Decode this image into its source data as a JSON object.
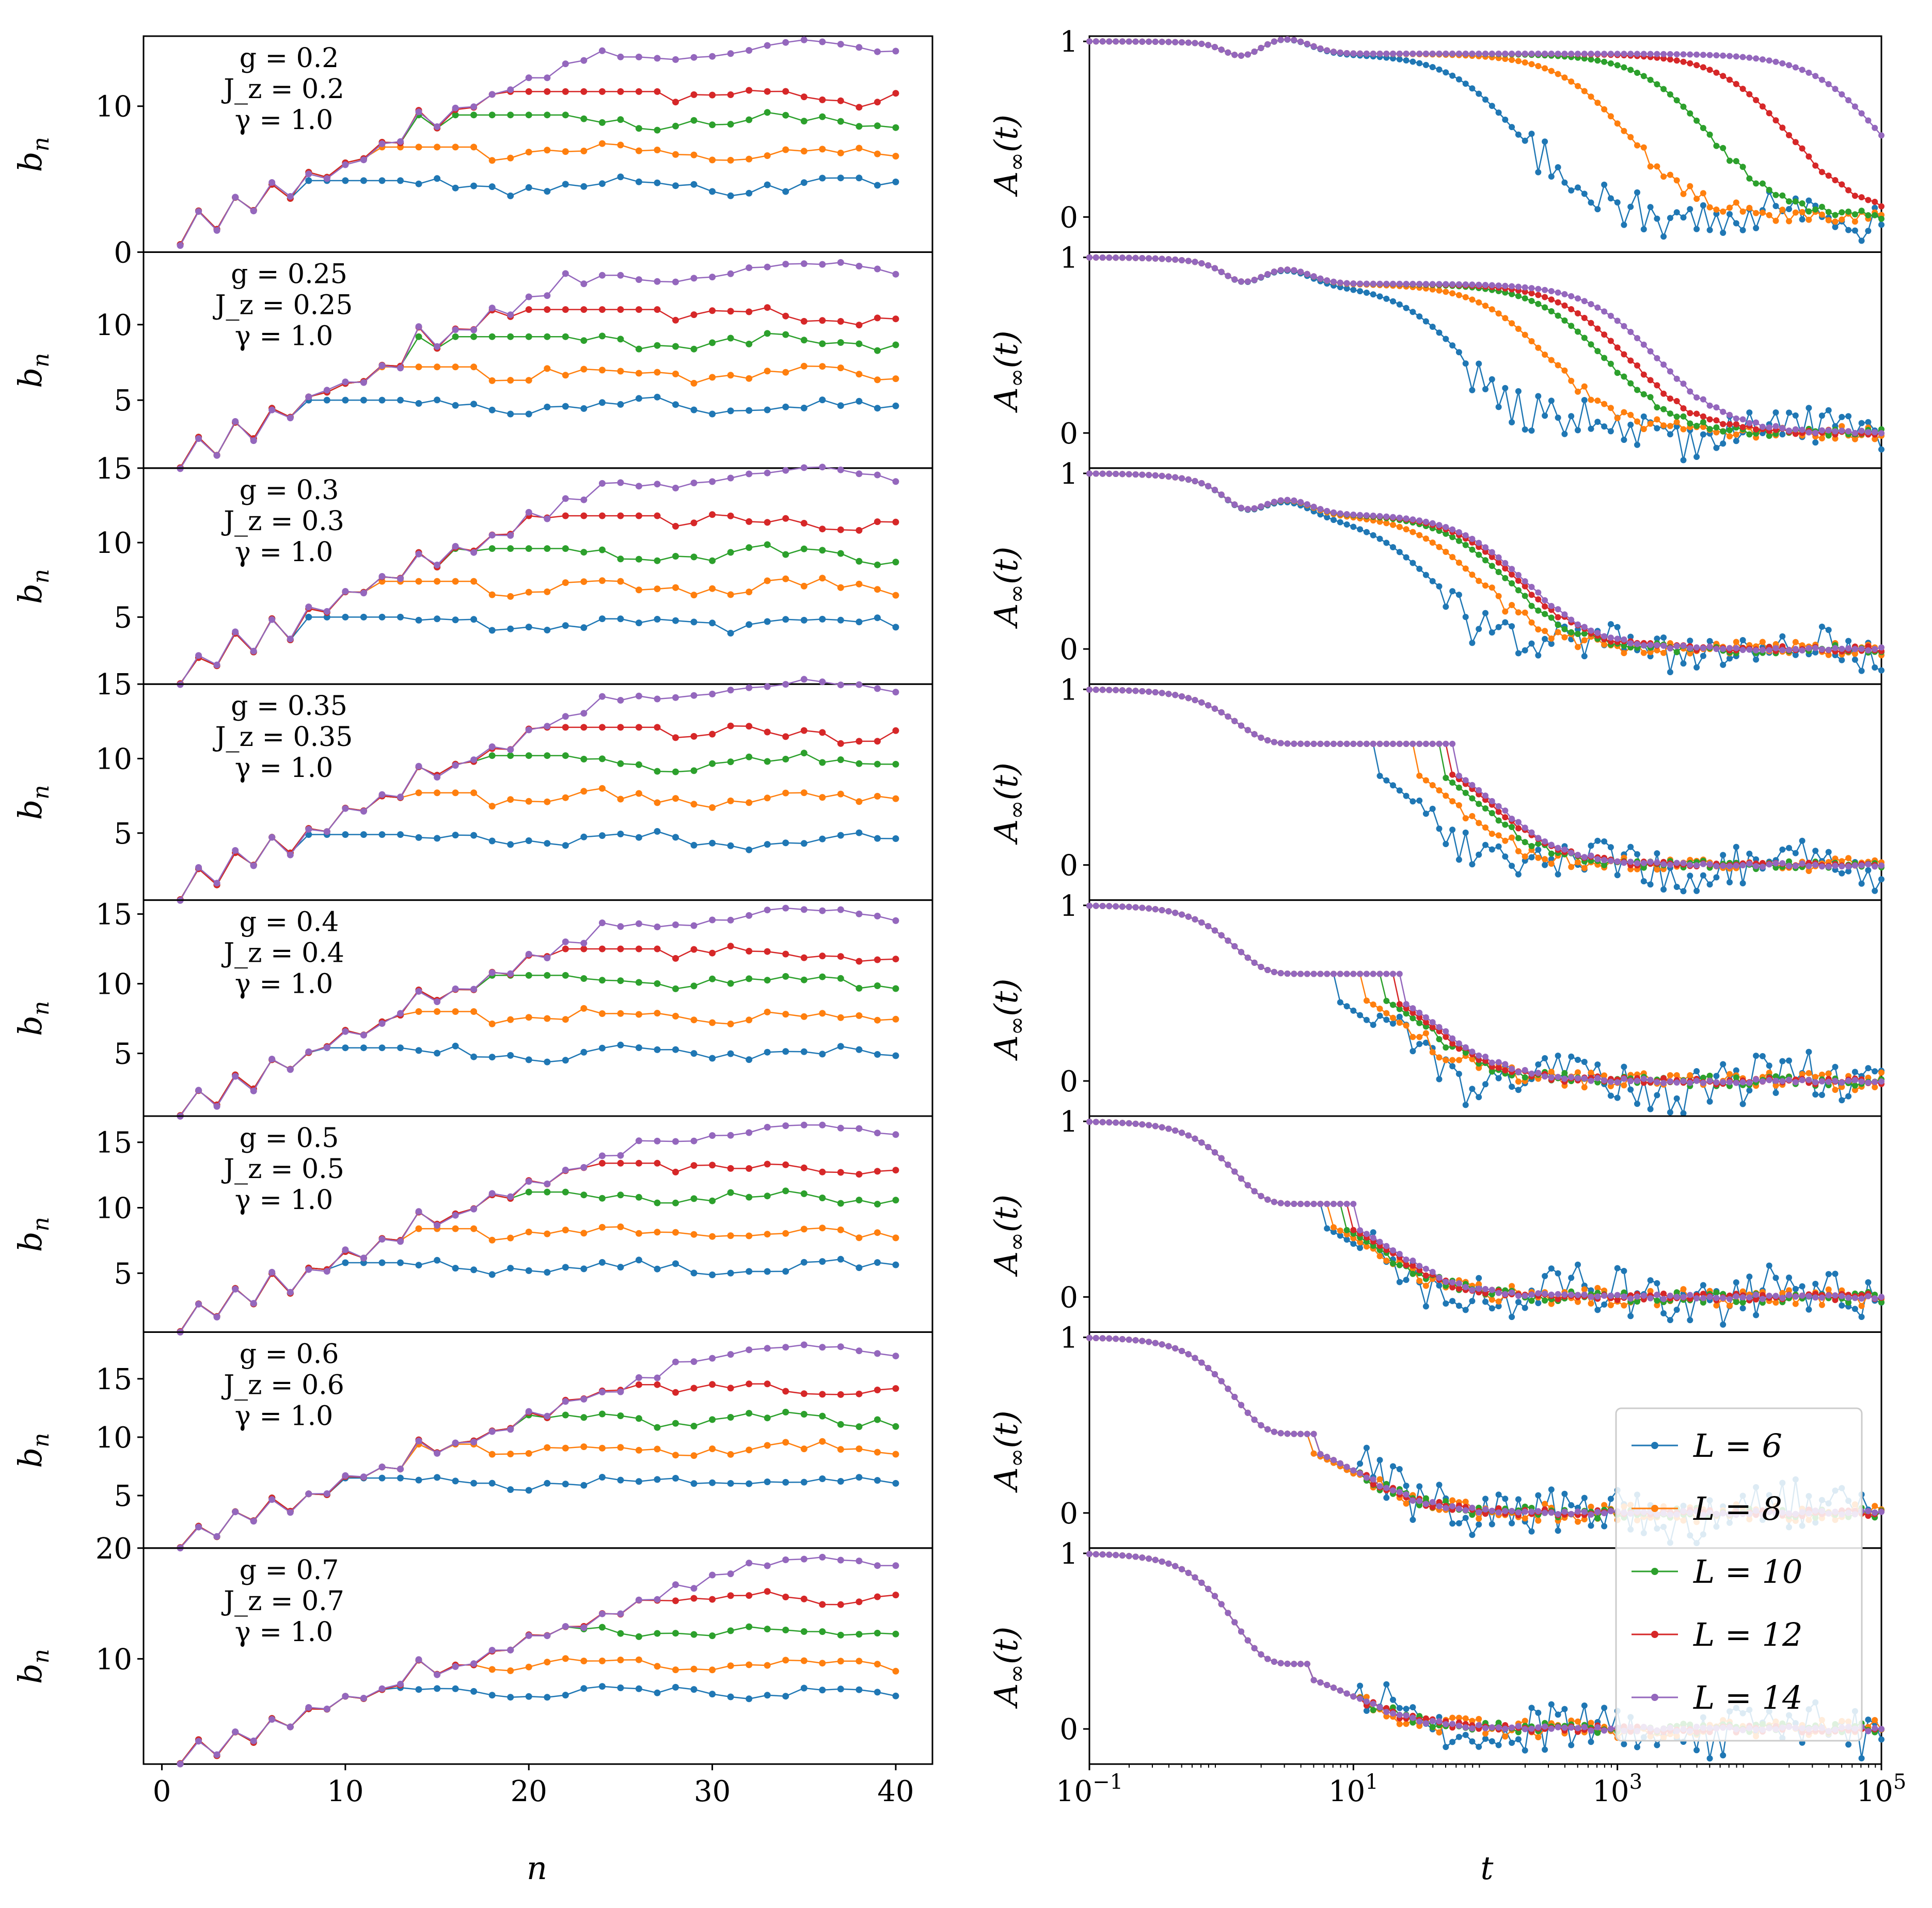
{
  "chart_data": {
    "type": "line",
    "colors": {
      "L=6": "#1f77b4",
      "L=8": "#ff7f0e",
      "L=10": "#2ca02c",
      "L=12": "#d62728",
      "L=14": "#9467bd"
    },
    "legend": {
      "placement": "right, over bottom two panels",
      "entries": [
        "L = 6",
        "L = 8",
        "L = 10",
        "L = 12",
        "L = 14"
      ]
    },
    "left": {
      "xlabel": "n",
      "ylabel": "b_n",
      "ylabel_main": "b",
      "ylabel_sub": "n",
      "xlim": [
        -1,
        42
      ],
      "xticks": [
        0,
        10,
        20,
        30,
        40
      ],
      "xtick_labels": [
        "0",
        "10",
        "20",
        "30",
        "40"
      ]
    },
    "right": {
      "xlabel": "t",
      "ylabel": "A∞(t)",
      "ylabel_main": "A",
      "ylabel_sub": "∞",
      "ylabel_arg": "(t)",
      "xscale": "log",
      "xlim": [
        0.1,
        100000
      ],
      "ylim": [
        -0.2,
        1.03
      ],
      "xtick_labels": [
        "10^−1",
        "10^1",
        "10^3",
        "10^5"
      ],
      "xtick_bases": [
        "10",
        "10",
        "10",
        "10"
      ],
      "xtick_exps": [
        "−1",
        "1",
        "3",
        "5"
      ],
      "yticks": [
        0,
        1
      ],
      "ytick_labels": [
        "0",
        "1"
      ]
    },
    "panels": [
      {
        "g": "g = 0.2",
        "Jz": "J_z = 0.2",
        "gamma": "γ = 1.0",
        "ylim": [
          0,
          14.8
        ],
        "yticks": [
          0,
          10
        ],
        "ytick_labels": [
          "0",
          "10"
        ],
        "plateaus": [
          4.5,
          6.8,
          9.0,
          10.6,
          13.8
        ],
        "tdecay": [
          180,
          1200,
          5000,
          20000,
          100000
        ]
      },
      {
        "g": "g = 0.25",
        "Jz": "J_z = 0.25",
        "gamma": "γ = 1.0",
        "ylim": [
          0.5,
          14.8
        ],
        "yticks": [
          5,
          10
        ],
        "ytick_labels": [
          "5",
          "10"
        ],
        "plateaus": [
          4.6,
          6.8,
          8.8,
          10.6,
          13.5
        ],
        "tdecay": [
          70,
          300,
          800,
          1200,
          2000
        ]
      },
      {
        "g": "g = 0.3",
        "Jz": "J_z = 0.3",
        "gamma": "γ = 1.0",
        "ylim": [
          0.5,
          15
        ],
        "yticks": [
          5,
          10,
          15
        ],
        "ytick_labels": [
          "5",
          "10",
          "15"
        ],
        "plateaus": [
          4.6,
          7.0,
          9.2,
          11.4,
          14.4
        ],
        "tdecay": [
          40,
          90,
          150,
          180,
          200
        ]
      },
      {
        "g": "g = 0.35",
        "Jz": "J_z = 0.35",
        "gamma": "γ = 1.0",
        "ylim": [
          0.5,
          15
        ],
        "yticks": [
          5,
          10,
          15
        ],
        "ytick_labels": [
          "5",
          "10",
          "15"
        ],
        "plateaus": [
          4.5,
          7.3,
          9.8,
          11.7,
          14.6
        ],
        "tdecay": [
          30,
          60,
          90,
          110,
          120
        ]
      },
      {
        "g": "g = 0.4",
        "Jz": "J_z = 0.4",
        "gamma": "γ = 1.0",
        "ylim": [
          0.5,
          16
        ],
        "yticks": [
          5,
          10,
          15
        ],
        "ytick_labels": [
          "5",
          "10",
          "15"
        ],
        "plateaus": [
          5.0,
          7.6,
          10.2,
          12.1,
          14.8
        ],
        "tdecay": [
          15,
          25,
          35,
          40,
          45
        ]
      },
      {
        "g": "g = 0.5",
        "Jz": "J_z = 0.5",
        "gamma": "γ = 1.0",
        "ylim": [
          0.5,
          17
        ],
        "yticks": [
          5,
          10,
          15
        ],
        "ytick_labels": [
          "5",
          "10",
          "15"
        ],
        "plateaus": [
          5.4,
          8.0,
          10.8,
          13.0,
          15.7
        ],
        "tdecay": [
          12,
          14,
          16,
          18,
          20
        ]
      },
      {
        "g": "g = 0.6",
        "Jz": "J_z = 0.6",
        "gamma": "γ = 1.0",
        "ylim": [
          0.5,
          19
        ],
        "yticks": [
          5,
          10,
          15
        ],
        "ytick_labels": [
          "5",
          "10",
          "15"
        ],
        "plateaus": [
          6.1,
          9.0,
          11.5,
          14.1,
          17.2
        ],
        "tdecay": [
          10,
          10,
          11,
          11,
          11
        ]
      },
      {
        "g": "g = 0.7",
        "Jz": "J_z = 0.7",
        "gamma": "γ = 1.0",
        "ylim": [
          0.5,
          20
        ],
        "yticks": [
          10,
          20
        ],
        "ytick_labels": [
          "10",
          "20"
        ],
        "plateaus": [
          7.0,
          9.5,
          12.5,
          15.5,
          18.5
        ],
        "tdecay": [
          10,
          10,
          10,
          10,
          10
        ]
      }
    ]
  }
}
